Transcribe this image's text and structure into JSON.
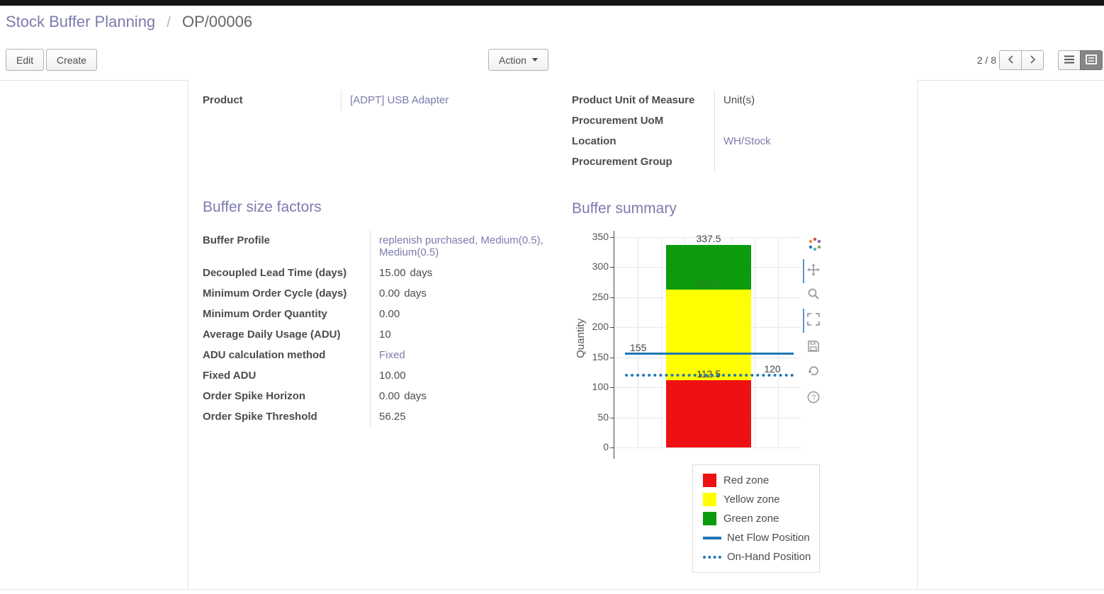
{
  "breadcrumb": {
    "section": "Stock Buffer Planning",
    "separator": "/",
    "record": "OP/00006"
  },
  "toolbar": {
    "edit_label": "Edit",
    "create_label": "Create",
    "action_label": "Action",
    "pager": "2 / 8"
  },
  "form": {
    "general": {
      "left_rows": [
        {
          "label": "Product",
          "value": "[ADPT] USB Adapter"
        }
      ],
      "right_rows": [
        {
          "label": "Product Unit of Measure",
          "value": "Unit(s)"
        },
        {
          "label": "Procurement UoM",
          "value": ""
        },
        {
          "label": "Location",
          "value": "WH/Stock"
        },
        {
          "label": "Procurement Group",
          "value": ""
        }
      ]
    },
    "buffer_factors": {
      "heading": "Buffer size factors",
      "rows": [
        {
          "label": "Buffer Profile",
          "value": "replenish purchased, Medium(0.5), Medium(0.5)"
        },
        {
          "label": "Decoupled Lead Time (days)",
          "value": "15.00",
          "suffix": "days"
        },
        {
          "label": "Minimum Order Cycle (days)",
          "value": "0.00",
          "suffix": "days"
        },
        {
          "label": "Minimum Order Quantity",
          "value": "0.00"
        },
        {
          "label": "Average Daily Usage (ADU)",
          "value": "10"
        },
        {
          "label": "ADU calculation method",
          "value": "Fixed"
        },
        {
          "label": "Fixed ADU",
          "value": "10.00"
        },
        {
          "label": "Order Spike Horizon",
          "value": "0.00",
          "suffix": "days"
        },
        {
          "label": "Order Spike Threshold",
          "value": "56.25"
        }
      ]
    },
    "buffer_summary": {
      "heading": "Buffer summary"
    }
  },
  "chart_data": {
    "type": "bar",
    "title": "",
    "ylabel": "Quantity",
    "ylim": [
      0,
      350
    ],
    "yticks": [
      0,
      50,
      100,
      150,
      200,
      250,
      300,
      350
    ],
    "grid": true,
    "zones": [
      {
        "name": "Red zone",
        "from": 0,
        "to": 112.5,
        "color": "#ee1111"
      },
      {
        "name": "Yellow zone",
        "from": 112.5,
        "to": 262.5,
        "color": "#ffff00"
      },
      {
        "name": "Green zone",
        "from": 262.5,
        "to": 337.5,
        "color": "#0c9b0c"
      }
    ],
    "lines": [
      {
        "name": "Net Flow Position",
        "value": 155,
        "style": "solid",
        "color": "#1f77b4"
      },
      {
        "name": "On-Hand Position",
        "value": 120,
        "style": "dotted",
        "color": "#1f77b4"
      }
    ],
    "annotations": [
      {
        "text": "337.5",
        "value": 337.5,
        "anchor": "bar-center",
        "color": "#444444"
      },
      {
        "text": "262.5",
        "value": 262.5,
        "anchor": "bar-center",
        "color": "#2e7d2e"
      },
      {
        "text": "155",
        "value": 155,
        "anchor": "left",
        "color": "#444444"
      },
      {
        "text": "112.5",
        "value": 112.5,
        "anchor": "bar-center",
        "color": "#444444"
      },
      {
        "text": "120",
        "value": 120,
        "anchor": "right",
        "color": "#444444"
      }
    ],
    "legend": [
      {
        "label": "Red zone",
        "swatch": "box",
        "color": "#ee1111"
      },
      {
        "label": "Yellow zone",
        "swatch": "box",
        "color": "#ffff00"
      },
      {
        "label": "Green zone",
        "swatch": "box",
        "color": "#0c9b0c"
      },
      {
        "label": "Net Flow Position",
        "swatch": "solid-line",
        "color": "#1f77b4"
      },
      {
        "label": "On-Hand Position",
        "swatch": "dotted-line",
        "color": "#1f77b4"
      }
    ],
    "legend_position": "below-right",
    "modebar_icons": [
      "plotly-logo",
      "pan",
      "zoom",
      "autoscale",
      "save",
      "reset-axes",
      "help"
    ]
  }
}
